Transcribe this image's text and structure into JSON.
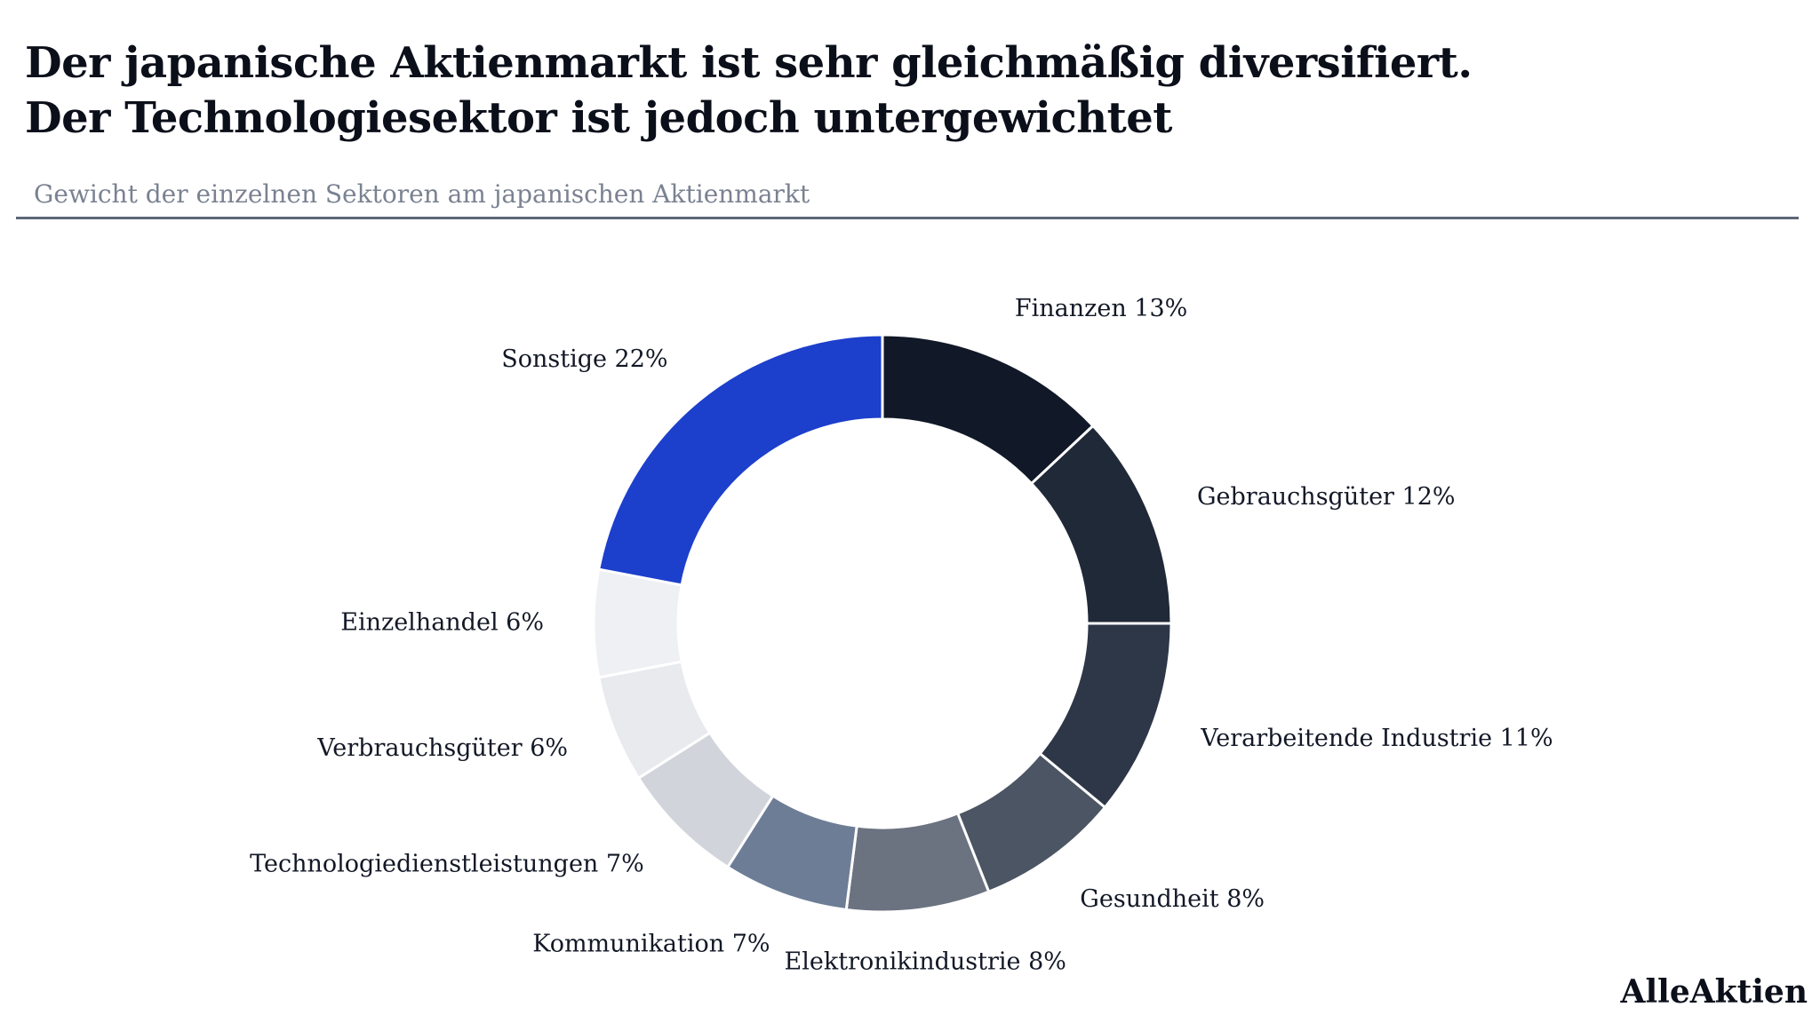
{
  "header": {
    "title_line1": "Der japanische Aktienmarkt ist sehr gleichmäßig diversifiert.",
    "title_line2": "Der Technologiesektor ist jedoch untergewichtet",
    "subtitle": "Gewicht der einzelnen Sektoren am japanischen Aktienmarkt"
  },
  "brand": "AlleAktien",
  "chart_data": {
    "type": "pie",
    "donut": true,
    "legend": "none",
    "slices": [
      {
        "name": "Finanzen",
        "value": 13,
        "label": "Finanzen 13%",
        "color": "#111827"
      },
      {
        "name": "Gebrauchsgüter",
        "value": 12,
        "label": "Gebrauchsgüter 12%",
        "color": "#1f2937"
      },
      {
        "name": "Verarbeitende Industrie",
        "value": 11,
        "label": "Verarbeitende Industrie 11%",
        "color": "#2d3748"
      },
      {
        "name": "Gesundheit",
        "value": 8,
        "label": "Gesundheit 8%",
        "color": "#4b5563"
      },
      {
        "name": "Elektronikindustrie",
        "value": 8,
        "label": "Elektronikindustrie 8%",
        "color": "#6b7280"
      },
      {
        "name": "Kommunikation",
        "value": 7,
        "label": "Kommunikation 7%",
        "color": "#6e7d96"
      },
      {
        "name": "Technologiedienstleistungen",
        "value": 7,
        "label": "Technologiedienstleistungen 7%",
        "color": "#d1d5db"
      },
      {
        "name": "Verbrauchsgüter",
        "value": 6,
        "label": "Verbrauchsgüter 6%",
        "color": "#e8eaee"
      },
      {
        "name": "Einzelhandel",
        "value": 6,
        "label": "Einzelhandel 6%",
        "color": "#eef0f4"
      },
      {
        "name": "Sonstige",
        "value": 22,
        "label": "Sonstige 22%",
        "color": "#1c3fcc"
      }
    ]
  }
}
